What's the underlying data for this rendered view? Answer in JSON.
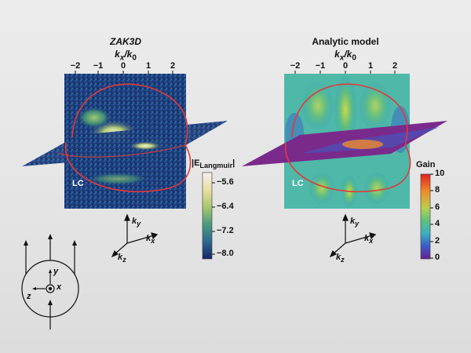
{
  "left_panel": {
    "title": "ZAK3D",
    "axis_label_main": "k",
    "axis_label_sub_x": "x",
    "axis_label_sep": "/k",
    "axis_label_sub_0": "0",
    "ticks": [
      "−2",
      "−1",
      "0",
      "1",
      "2"
    ],
    "region_label": "LC",
    "colorbar_label_main": "|E",
    "colorbar_label_sub": "Langmuir",
    "colorbar_label_end": "|",
    "colorbar_ticks": [
      "−5.6",
      "−6.4",
      "−7.2",
      "−8.0"
    ]
  },
  "right_panel": {
    "title": "Analytic model",
    "axis_label_main": "k",
    "axis_label_sub_x": "x",
    "axis_label_sep": "/k",
    "axis_label_sub_0": "0",
    "ticks": [
      "−2",
      "−1",
      "0",
      "1",
      "2"
    ],
    "region_label": "LC",
    "colorbar_label": "Gain",
    "colorbar_ticks": [
      "10",
      "8",
      "6",
      "4",
      "2",
      "0"
    ]
  },
  "axes_triad": {
    "ky": "k",
    "ky_sub": "y",
    "kx": "k",
    "kx_sub": "x",
    "kz": "k",
    "kz_sub": "z"
  },
  "coord_diagram": {
    "y": "y",
    "z": "z",
    "x": "x"
  },
  "colors": {
    "noise_bg": "#1d3d7a",
    "curve": "#e03a3a",
    "gain_low": "#6a1f8a",
    "gain_high": "#e02020"
  }
}
